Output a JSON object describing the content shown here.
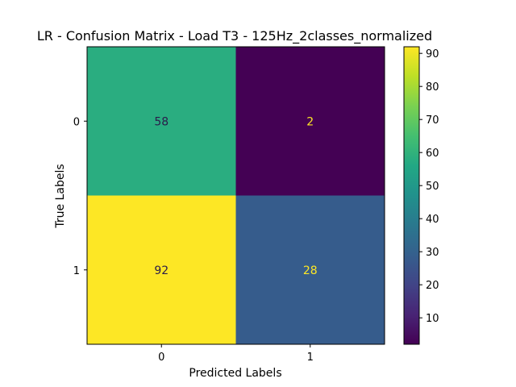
{
  "chart_data": {
    "type": "heatmap",
    "title": "LR - Confusion Matrix - Load T3 - 125Hz_2classes_normalized",
    "xlabel": "Predicted Labels",
    "ylabel": "True Labels",
    "x_categories": [
      "0",
      "1"
    ],
    "y_categories": [
      "0",
      "1"
    ],
    "values": [
      [
        58,
        2
      ],
      [
        92,
        28
      ]
    ],
    "colormap": "viridis",
    "color_range": [
      2,
      92
    ],
    "colorbar_ticks": [
      10,
      20,
      30,
      40,
      50,
      60,
      70,
      80,
      90
    ],
    "annotation_colors": {
      "on_light": "#2a1b4a",
      "on_dark": "#fde725"
    }
  }
}
